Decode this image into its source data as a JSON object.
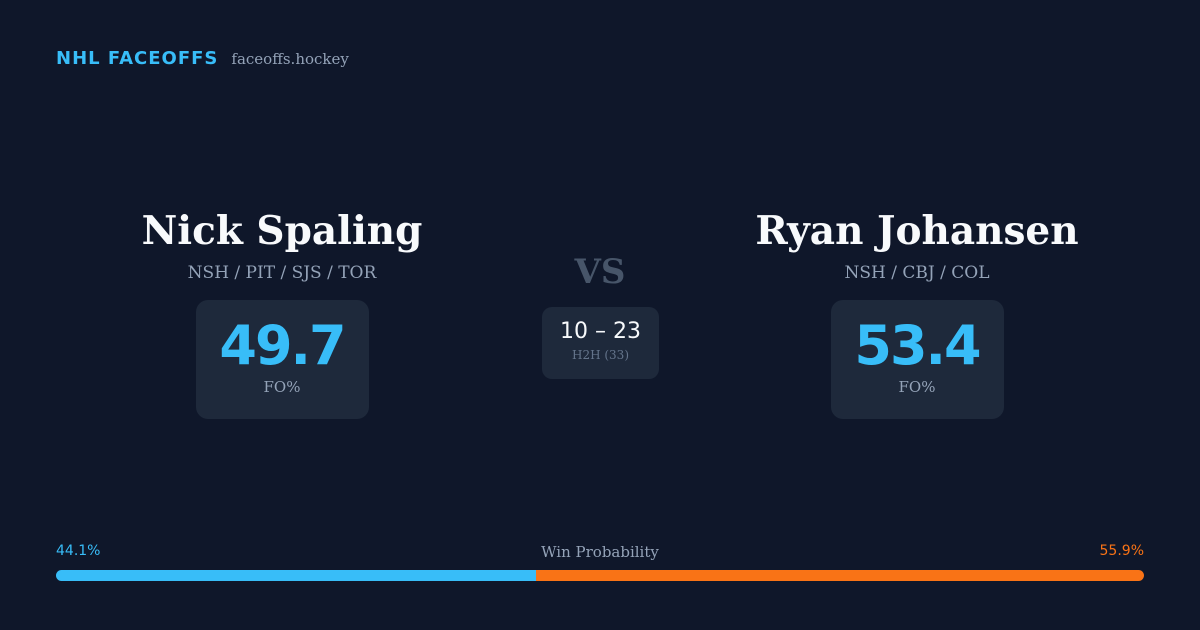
{
  "brand": {
    "name": "NHL FACEOFFS",
    "site": "faceoffs.hockey"
  },
  "players": [
    {
      "name": "Nick Spaling",
      "teams": "NSH / PIT / SJS / TOR",
      "fo_pct": "49.7",
      "fo_label": "FO%"
    },
    {
      "name": "Ryan Johansen",
      "teams": "NSH / CBJ / COL",
      "fo_pct": "53.4",
      "fo_label": "FO%"
    }
  ],
  "vs_label": "VS",
  "h2h": {
    "score": "10 – 23",
    "label": "H2H (33)"
  },
  "win_probability": {
    "title": "Win Probability",
    "left_label": "44.1%",
    "right_label": "55.9%",
    "left_value": 44.1,
    "right_value": 55.9
  },
  "colors": {
    "background": "#0f172a",
    "card": "#1e293b",
    "accent_blue": "#38bdf8",
    "accent_orange": "#f97316"
  }
}
